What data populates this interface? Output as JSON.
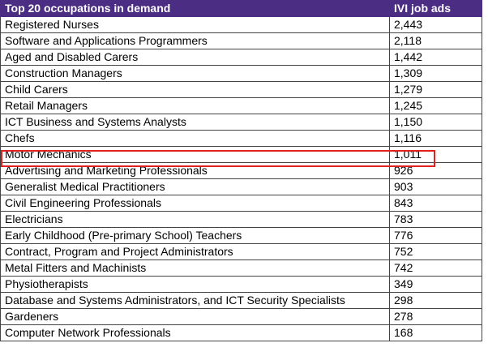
{
  "table": {
    "headers": [
      "Top 20 occupations in demand",
      "IVI job ads"
    ],
    "rows": [
      [
        "Registered Nurses",
        "2,443"
      ],
      [
        "Software and Applications Programmers",
        "2,118"
      ],
      [
        "Aged and Disabled Carers",
        "1,442"
      ],
      [
        "Construction Managers",
        "1,309"
      ],
      [
        "Child Carers",
        "1,279"
      ],
      [
        "Retail Managers",
        "1,245"
      ],
      [
        "ICT Business and Systems Analysts",
        "1,150"
      ],
      [
        "Chefs",
        "1,116"
      ],
      [
        "Motor Mechanics",
        "1,011"
      ],
      [
        "Advertising and Marketing Professionals",
        "926"
      ],
      [
        "Generalist Medical Practitioners",
        "903"
      ],
      [
        "Civil Engineering Professionals",
        "843"
      ],
      [
        "Electricians",
        "783"
      ],
      [
        "Early Childhood (Pre-primary School) Teachers",
        "776"
      ],
      [
        "Contract, Program and Project Administrators",
        "752"
      ],
      [
        "Metal Fitters and Machinists",
        "742"
      ],
      [
        "Physiotherapists",
        "349"
      ],
      [
        "Database and Systems Administrators, and ICT Security Specialists",
        "298"
      ],
      [
        "Gardeners",
        "278"
      ],
      [
        "Computer Network Professionals",
        "168"
      ]
    ]
  },
  "colors": {
    "header_background": "#4b2d83",
    "header_text": "#ffffff",
    "highlight_border": "#e0211f"
  },
  "highlighted_row": "Motor Mechanics"
}
